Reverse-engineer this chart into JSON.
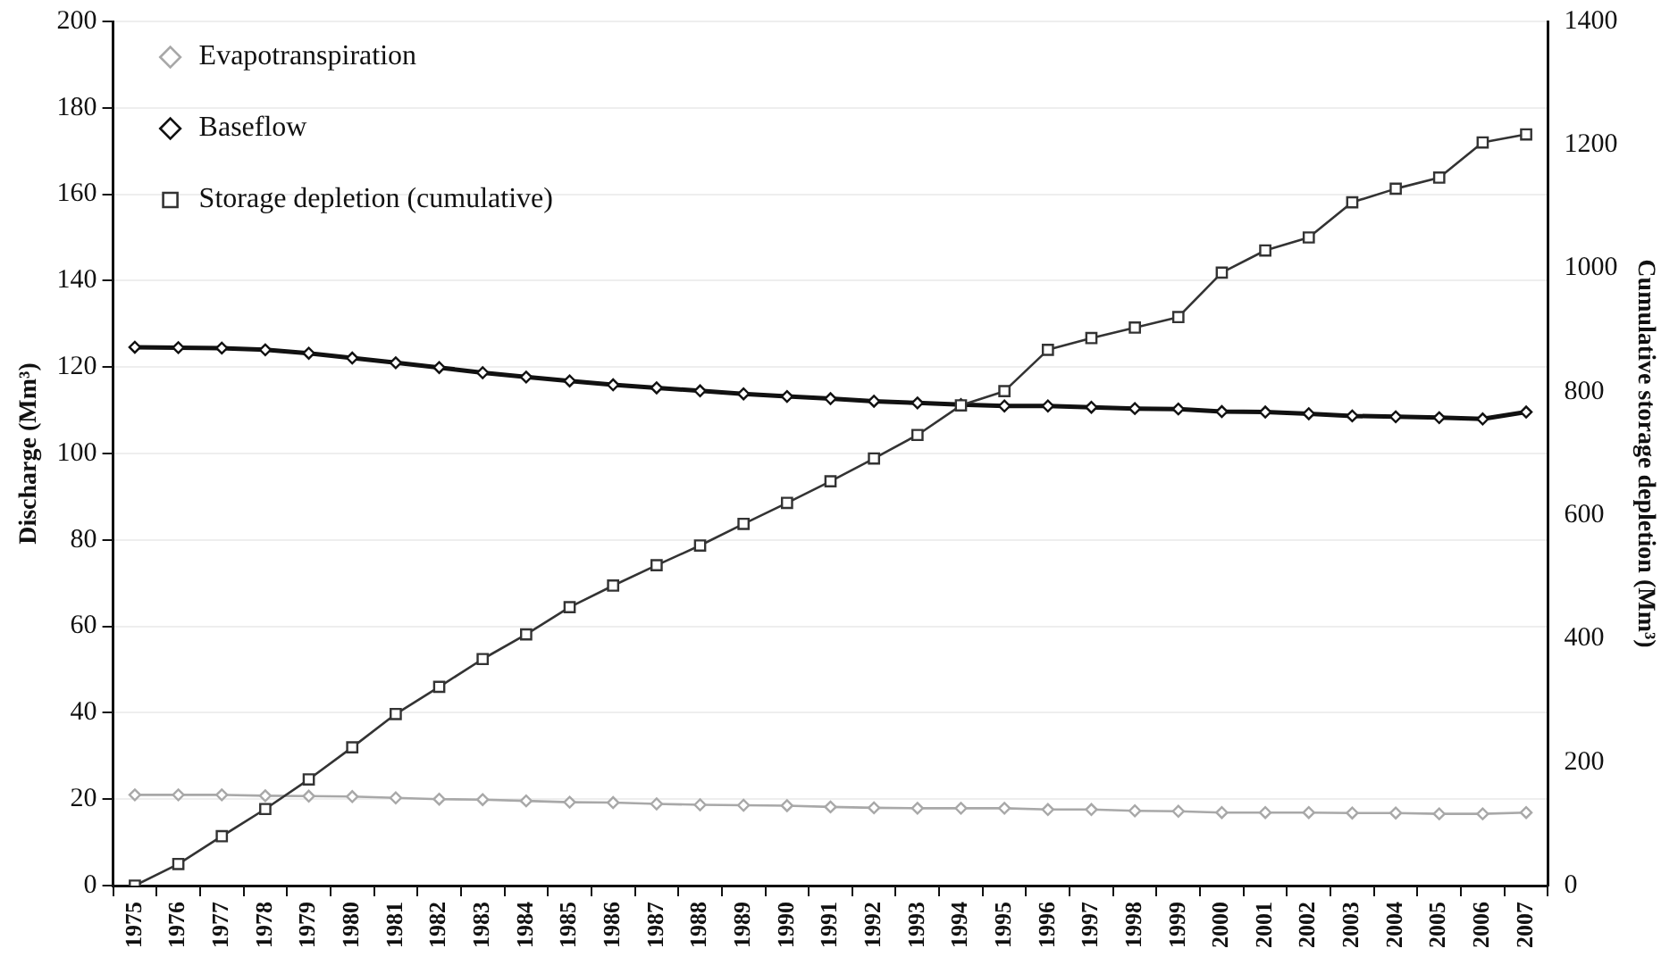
{
  "chart_data": {
    "type": "line",
    "xlabel": null,
    "ylabel": "Discharge (Mm³)",
    "y2label": "Cumulative storage depletion (Mm³)",
    "categories": [
      "1975",
      "1976",
      "1977",
      "1978",
      "1979",
      "1980",
      "1981",
      "1982",
      "1983",
      "1984",
      "1985",
      "1986",
      "1987",
      "1988",
      "1989",
      "1990",
      "1991",
      "1992",
      "1993",
      "1994",
      "1995",
      "1996",
      "1997",
      "1998",
      "1999",
      "2000",
      "2001",
      "2002",
      "2003",
      "2004",
      "2005",
      "2006",
      "2007"
    ],
    "series": [
      {
        "name": "Evapotranspiration",
        "color": "#a8a8a8",
        "marker": "diamond",
        "values": [
          21.0,
          21.0,
          21.0,
          20.8,
          20.7,
          20.6,
          20.3,
          20.0,
          19.9,
          19.6,
          19.3,
          19.2,
          18.9,
          18.7,
          18.6,
          18.5,
          18.2,
          18.0,
          17.9,
          17.9,
          17.9,
          17.6,
          17.6,
          17.3,
          17.2,
          16.9,
          16.9,
          16.9,
          16.8,
          16.8,
          16.6,
          16.6,
          16.9
        ]
      },
      {
        "name": "Baseflow",
        "color": "#111111",
        "marker": "diamond",
        "values": [
          124.6,
          124.5,
          124.4,
          124.0,
          123.2,
          122.1,
          121.0,
          119.9,
          118.7,
          117.7,
          116.8,
          115.9,
          115.2,
          114.5,
          113.8,
          113.2,
          112.7,
          112.1,
          111.7,
          111.3,
          111.0,
          111.0,
          110.7,
          110.4,
          110.3,
          109.7,
          109.6,
          109.2,
          108.7,
          108.5,
          108.3,
          108.0,
          109.6
        ]
      },
      {
        "name": "Storage depletion (cumulative)",
        "color": "#333333",
        "marker": "square",
        "axis": "y2",
        "values": [
          0,
          35,
          80,
          124,
          172,
          224,
          278,
          322,
          367,
          407,
          451,
          486,
          519,
          551,
          586,
          620,
          655,
          692,
          730,
          778,
          801,
          868,
          887,
          904,
          921,
          993,
          1029,
          1050,
          1107,
          1129,
          1147,
          1204,
          1217
        ]
      }
    ],
    "ylim": [
      0,
      200
    ],
    "yticks": [
      0,
      20,
      40,
      60,
      80,
      100,
      120,
      140,
      160,
      180,
      200
    ],
    "y2lim": [
      0,
      1400
    ],
    "y2ticks": [
      0,
      200,
      400,
      600,
      800,
      1000,
      1200,
      1400
    ],
    "grid": "y",
    "legend": "top left",
    "line_style": "solid"
  }
}
